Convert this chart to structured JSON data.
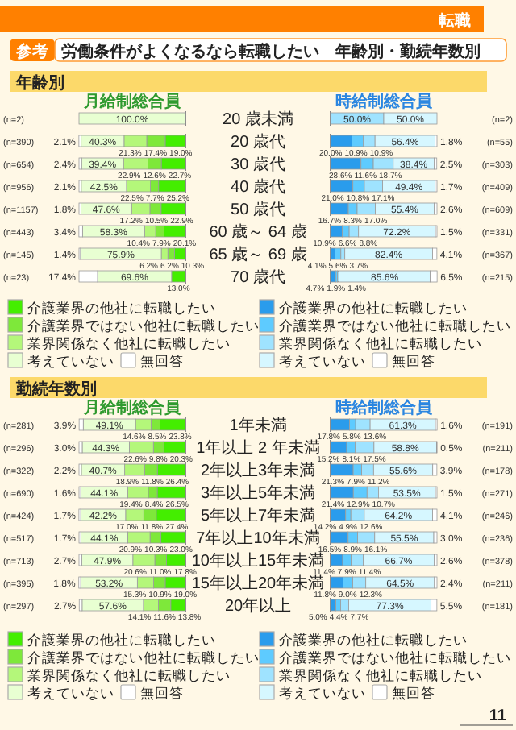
{
  "chart_data": [
    {
      "type": "bar",
      "orientation": "horizontal",
      "stacked": true,
      "title": "月給制総合員",
      "categories": [
        "20 歳未満",
        "20 歳代",
        "30 歳代",
        "40 歳代",
        "50 歳代",
        "60 歳～ 64 歳",
        "65 歳～ 69 歳",
        "70 歳代"
      ],
      "xlim": [
        100,
        0
      ],
      "tick_labels": "y",
      "legend": "bottom",
      "series": [
        {
          "name": "介護業界の他社に転職したい",
          "color": "#44ee00",
          "values": [
            null,
            19.0,
            22.7,
            25.2,
            22.9,
            20.1,
            10.3,
            13.0
          ],
          "value_labels": [
            null,
            "19.0%",
            "22.7%",
            "25.2%",
            "22.9%",
            "20.1%",
            "10.3%",
            "13.0%"
          ]
        },
        {
          "name": "介護業界ではない他社に転職したい",
          "color": "#7ee83a",
          "values": [
            null,
            17.4,
            12.6,
            7.7,
            10.5,
            7.9,
            6.2,
            null
          ],
          "value_labels": [
            null,
            "17.4%",
            "12.6%",
            "7.7%",
            "10.5%",
            "7.9%",
            "6.2%",
            null
          ]
        },
        {
          "name": "業界関係なく他社に転職したい",
          "color": "#b4f77a",
          "values": [
            null,
            21.3,
            22.9,
            22.5,
            17.2,
            10.4,
            6.2,
            null
          ],
          "value_labels": [
            null,
            "21.3%",
            "22.9%",
            "22.5%",
            "17.2%",
            "10.4%",
            "6.2%",
            null
          ]
        },
        {
          "name": "考えていない",
          "color": "#e8ffd2",
          "values": [
            100.0,
            40.3,
            39.4,
            42.5,
            47.6,
            58.3,
            75.9,
            69.6
          ],
          "value_labels": [
            "100.0%",
            "40.3%",
            "39.4%",
            "42.5%",
            "47.6%",
            "58.3%",
            "75.9%",
            "69.6%"
          ]
        },
        {
          "name": "無回答",
          "color": "#ffffff",
          "values": [
            null,
            2.1,
            2.4,
            2.1,
            1.8,
            3.4,
            1.4,
            17.4
          ],
          "value_labels": [
            null,
            "2.1%",
            "2.4%",
            "2.1%",
            "1.8%",
            "3.4%",
            "1.4%",
            "17.4%"
          ]
        }
      ],
      "annotations": [
        "(n=2)",
        "(n=390)",
        "(n=654)",
        "(n=956)",
        "(n=1157)",
        "(n=443)",
        "(n=145)",
        "(n=23)",
        "転職",
        "参考",
        "労働条件がよくなるなら転職したい　年齢別・勤続年数別",
        "年齢別"
      ]
    },
    {
      "type": "bar",
      "orientation": "horizontal",
      "stacked": true,
      "title": "時給制総合員",
      "categories": [
        null,
        null,
        null,
        null,
        null,
        null,
        null,
        null
      ],
      "xlim": [
        0,
        100
      ],
      "legend": "bottom",
      "series": [
        {
          "name": "介護業界の他社に転職したい",
          "color": "#2a9cec",
          "values": [
            null,
            20.0,
            28.6,
            21.0,
            16.7,
            10.9,
            4.1,
            4.7
          ],
          "value_labels": [
            null,
            "20.0%",
            "28.6%",
            "21.0%",
            "16.7%",
            "10.9%",
            "4.1%",
            "4.7%"
          ]
        },
        {
          "name": "介護業界ではない他社に転職したい",
          "color": "#5ecbff",
          "values": [
            null,
            10.9,
            11.6,
            10.8,
            8.3,
            6.6,
            5.6,
            1.9
          ],
          "value_labels": [
            null,
            "10.9%",
            "11.6%",
            "10.8%",
            "8.3%",
            "6.6%",
            "5.6%",
            "1.9%"
          ]
        },
        {
          "name": "業界関係なく他社に転職したい",
          "color": "#9fe3ff",
          "values": [
            50.0,
            10.9,
            18.7,
            17.1,
            17.0,
            8.8,
            3.7,
            1.4
          ],
          "value_labels": [
            "50.0%",
            "10.9%",
            "18.7%",
            "17.1%",
            "17.0%",
            "8.8%",
            "3.7%",
            "1.4%"
          ]
        },
        {
          "name": "考えていない",
          "color": "#d6f7ff",
          "values": [
            50.0,
            56.4,
            38.4,
            49.4,
            55.4,
            72.2,
            82.4,
            85.6
          ],
          "value_labels": [
            "50.0%",
            "56.4%",
            "38.4%",
            "49.4%",
            "55.4%",
            "72.2%",
            "82.4%",
            "85.6%"
          ]
        },
        {
          "name": "無回答",
          "color": "#ffffff",
          "values": [
            null,
            1.8,
            2.5,
            1.7,
            2.6,
            1.5,
            4.1,
            6.5
          ],
          "value_labels": [
            null,
            "1.8%",
            "2.5%",
            "1.7%",
            "2.6%",
            "1.5%",
            "4.1%",
            "6.5%"
          ]
        }
      ],
      "annotations": [
        "(n=2)",
        "(n=55)",
        "(n=303)",
        "(n=409)",
        "(n=609)",
        "(n=331)",
        "(n=367)",
        "(n=215)"
      ]
    },
    {
      "type": "bar",
      "orientation": "horizontal",
      "stacked": true,
      "title": "月給制総合員",
      "categories": [
        "1年未満",
        "1年以上 2 年未満",
        "2年以上3年未満",
        "3年以上5年未満",
        "5年以上7年未満",
        "7年以上10年未満",
        "10年以上15年未満",
        "15年以上20年未満",
        "20年以上"
      ],
      "xlim": [
        100,
        0
      ],
      "tick_labels": "y",
      "legend": "bottom",
      "series": [
        {
          "name": "介護業界の他社に転職したい",
          "color": "#44ee00",
          "values": [
            23.8,
            20.3,
            26.4,
            26.5,
            27.4,
            23.0,
            17.8,
            19.0,
            13.8
          ],
          "value_labels": [
            "23.8%",
            "20.3%",
            "26.4%",
            "26.5%",
            "27.4%",
            "23.0%",
            "17.8%",
            "19.0%",
            "13.8%"
          ]
        },
        {
          "name": "介護業界ではない他社に転職したい",
          "color": "#7ee83a",
          "values": [
            8.5,
            9.8,
            11.8,
            8.4,
            11.8,
            10.3,
            11.0,
            10.9,
            11.6
          ],
          "value_labels": [
            "8.5%",
            "9.8%",
            "11.8%",
            "8.4%",
            "11.8%",
            "10.3%",
            "11.0%",
            "10.9%",
            "11.6%"
          ]
        },
        {
          "name": "業界関係なく他社に転職したい",
          "color": "#b4f77a",
          "values": [
            14.6,
            22.6,
            18.9,
            19.4,
            17.0,
            20.9,
            20.6,
            15.3,
            14.1
          ],
          "value_labels": [
            "14.6%",
            "22.6%",
            "18.9%",
            "19.4%",
            "17.0%",
            "20.9%",
            "20.6%",
            "15.3%",
            "14.1%"
          ]
        },
        {
          "name": "考えていない",
          "color": "#e8ffd2",
          "values": [
            49.1,
            44.3,
            40.7,
            44.1,
            42.2,
            44.1,
            47.9,
            53.2,
            57.6
          ],
          "value_labels": [
            "49.1%",
            "44.3%",
            "40.7%",
            "44.1%",
            "42.2%",
            "44.1%",
            "47.9%",
            "53.2%",
            "57.6%"
          ]
        },
        {
          "name": "無回答",
          "color": "#ffffff",
          "values": [
            3.9,
            3.0,
            2.2,
            1.6,
            1.7,
            1.7,
            2.7,
            1.8,
            2.7
          ],
          "value_labels": [
            "3.9%",
            "3.0%",
            "2.2%",
            "1.6%",
            "1.7%",
            "1.7%",
            "2.7%",
            "1.8%",
            "2.7%"
          ]
        }
      ],
      "annotations": [
        "(n=281)",
        "(n=296)",
        "(n=322)",
        "(n=690)",
        "(n=424)",
        "(n=517)",
        "(n=713)",
        "(n=395)",
        "(n=297)",
        "勤続年数別"
      ]
    },
    {
      "type": "bar",
      "orientation": "horizontal",
      "stacked": true,
      "title": "時給制総合員",
      "categories": [
        null,
        null,
        null,
        null,
        null,
        null,
        null,
        null,
        null
      ],
      "xlim": [
        0,
        100
      ],
      "legend": "bottom",
      "series": [
        {
          "name": "介護業界の他社に転職したい",
          "color": "#2a9cec",
          "values": [
            17.8,
            15.2,
            21.3,
            21.4,
            14.2,
            16.5,
            11.4,
            11.8,
            5.0
          ],
          "value_labels": [
            "17.8%",
            "15.2%",
            "21.3%",
            "21.4%",
            "14.2%",
            "16.5%",
            "11.4%",
            "11.8%",
            "5.0%"
          ]
        },
        {
          "name": "介護業界ではない他社に転職したい",
          "color": "#5ecbff",
          "values": [
            5.8,
            8.1,
            7.9,
            12.9,
            4.9,
            8.9,
            7.9,
            9.0,
            4.4
          ],
          "value_labels": [
            "5.8%",
            "8.1%",
            "7.9%",
            "12.9%",
            "4.9%",
            "8.9%",
            "7.9%",
            "9.0%",
            "4.4%"
          ]
        },
        {
          "name": "業界関係なく他社に転職したい",
          "color": "#9fe3ff",
          "values": [
            13.6,
            17.5,
            11.2,
            10.7,
            12.6,
            16.1,
            11.4,
            12.3,
            7.7
          ],
          "value_labels": [
            "13.6%",
            "17.5%",
            "11.2%",
            "10.7%",
            "12.6%",
            "16.1%",
            "11.4%",
            "12.3%",
            "7.7%"
          ]
        },
        {
          "name": "考えていない",
          "color": "#d6f7ff",
          "values": [
            61.3,
            58.8,
            55.6,
            53.5,
            64.2,
            55.5,
            66.7,
            64.5,
            77.3
          ],
          "value_labels": [
            "61.3%",
            "58.8%",
            "55.6%",
            "53.5%",
            "64.2%",
            "55.5%",
            "66.7%",
            "64.5%",
            "77.3%"
          ]
        },
        {
          "name": "無回答",
          "color": "#ffffff",
          "values": [
            1.6,
            0.5,
            3.9,
            1.5,
            4.1,
            3.0,
            2.6,
            2.4,
            5.5
          ],
          "value_labels": [
            "1.6%",
            "0.5%",
            "3.9%",
            "1.5%",
            "4.1%",
            "3.0%",
            "2.6%",
            "2.4%",
            "5.5%"
          ]
        }
      ],
      "annotations": [
        "(n=191)",
        "(n=211)",
        "(n=178)",
        "(n=271)",
        "(n=246)",
        "(n=236)",
        "(n=378)",
        "(n=211)",
        "(n=181)",
        "11"
      ]
    }
  ]
}
